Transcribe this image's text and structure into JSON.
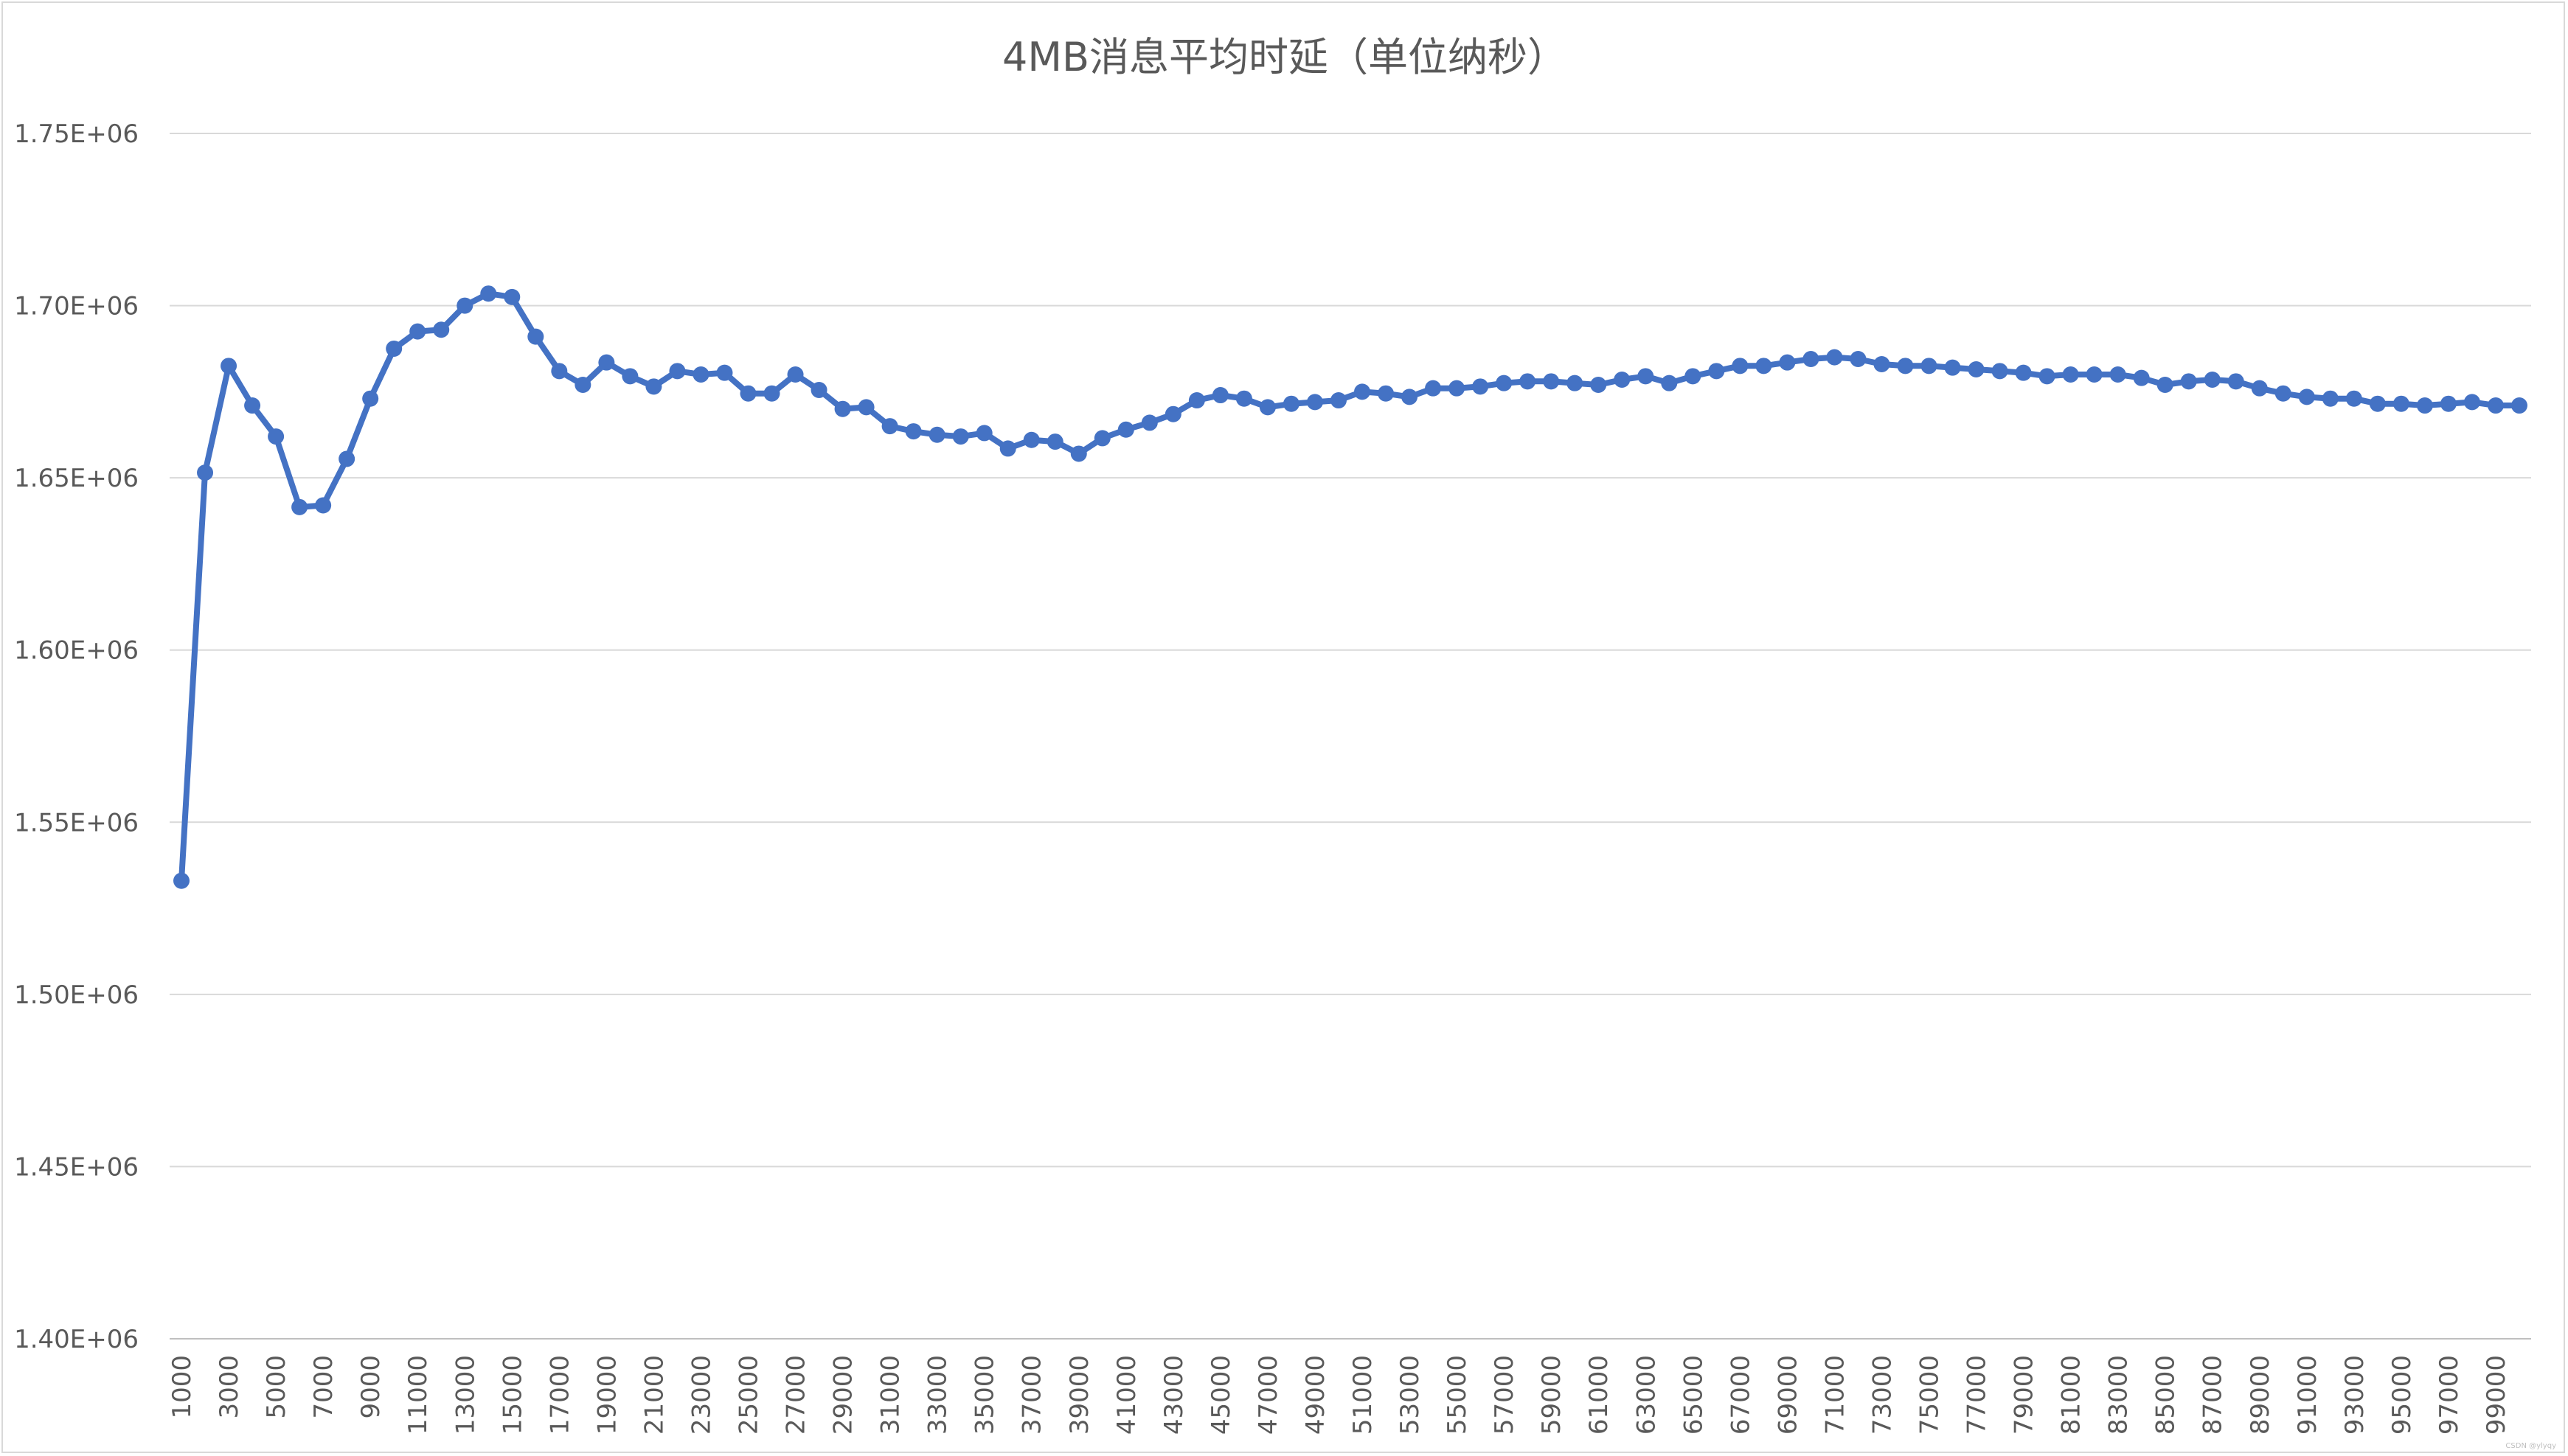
{
  "chart_data": {
    "type": "line",
    "title": "4MB消息平均时延（单位纳秒）",
    "xlabel": "",
    "ylabel": "",
    "ylim": [
      1400000,
      1750000
    ],
    "yticks": [
      1400000,
      1450000,
      1500000,
      1550000,
      1600000,
      1650000,
      1700000,
      1750000
    ],
    "ytick_labels": [
      "1.40E+06",
      "1.45E+06",
      "1.50E+06",
      "1.55E+06",
      "1.60E+06",
      "1.65E+06",
      "1.70E+06",
      "1.75E+06"
    ],
    "x": [
      1000,
      2000,
      3000,
      4000,
      5000,
      6000,
      7000,
      8000,
      9000,
      10000,
      11000,
      12000,
      13000,
      14000,
      15000,
      16000,
      17000,
      18000,
      19000,
      20000,
      21000,
      22000,
      23000,
      24000,
      25000,
      26000,
      27000,
      28000,
      29000,
      30000,
      31000,
      32000,
      33000,
      34000,
      35000,
      36000,
      37000,
      38000,
      39000,
      40000,
      41000,
      42000,
      43000,
      44000,
      45000,
      46000,
      47000,
      48000,
      49000,
      50000,
      51000,
      52000,
      53000,
      54000,
      55000,
      56000,
      57000,
      58000,
      59000,
      60000,
      61000,
      62000,
      63000,
      64000,
      65000,
      66000,
      67000,
      68000,
      69000,
      70000,
      71000,
      72000,
      73000,
      74000,
      75000,
      76000,
      77000,
      78000,
      79000,
      80000,
      81000,
      82000,
      83000,
      84000,
      85000,
      86000,
      87000,
      88000,
      89000,
      90000,
      91000,
      92000,
      93000,
      94000,
      95000,
      96000,
      97000,
      98000,
      99000,
      100000
    ],
    "x_tick_labels": [
      "1000",
      "3000",
      "5000",
      "7000",
      "9000",
      "11000",
      "13000",
      "15000",
      "17000",
      "19000",
      "21000",
      "23000",
      "25000",
      "27000",
      "29000",
      "31000",
      "33000",
      "35000",
      "37000",
      "39000",
      "41000",
      "43000",
      "45000",
      "47000",
      "49000",
      "51000",
      "53000",
      "55000",
      "57000",
      "59000",
      "61000",
      "63000",
      "65000",
      "67000",
      "69000",
      "71000",
      "73000",
      "75000",
      "77000",
      "79000",
      "81000",
      "83000",
      "85000",
      "87000",
      "89000",
      "91000",
      "93000",
      "95000",
      "97000",
      "99000"
    ],
    "series": [
      {
        "name": "",
        "color": "#4472C4",
        "values": [
          1533000,
          1651500,
          1682500,
          1671000,
          1662000,
          1641500,
          1642000,
          1655500,
          1673000,
          1687500,
          1692500,
          1693000,
          1700000,
          1703500,
          1702500,
          1691000,
          1681000,
          1677000,
          1683500,
          1679500,
          1676500,
          1681000,
          1680000,
          1680500,
          1674500,
          1674500,
          1680000,
          1675500,
          1670000,
          1670500,
          1665000,
          1663500,
          1662500,
          1662000,
          1663000,
          1658500,
          1661000,
          1660500,
          1657000,
          1661500,
          1664000,
          1666000,
          1668500,
          1672500,
          1674000,
          1673000,
          1670500,
          1671500,
          1672000,
          1672500,
          1675000,
          1674500,
          1673500,
          1676000,
          1676000,
          1676500,
          1677500,
          1678000,
          1678000,
          1677500,
          1677000,
          1678500,
          1679500,
          1677500,
          1679500,
          1681000,
          1682500,
          1682500,
          1683500,
          1684500,
          1685000,
          1684500,
          1683000,
          1682500,
          1682500,
          1682000,
          1681500,
          1681000,
          1680500,
          1679500,
          1680000,
          1680000,
          1680000,
          1679000,
          1677000,
          1678000,
          1678500,
          1678000,
          1676000,
          1674500,
          1673500,
          1673000,
          1673000,
          1671500,
          1671500,
          1671000,
          1671500,
          1672000,
          1671000,
          1671000
        ]
      }
    ],
    "grid": true,
    "legend": "none",
    "marker": "circle"
  },
  "watermark": "CSDN @ylyqy"
}
